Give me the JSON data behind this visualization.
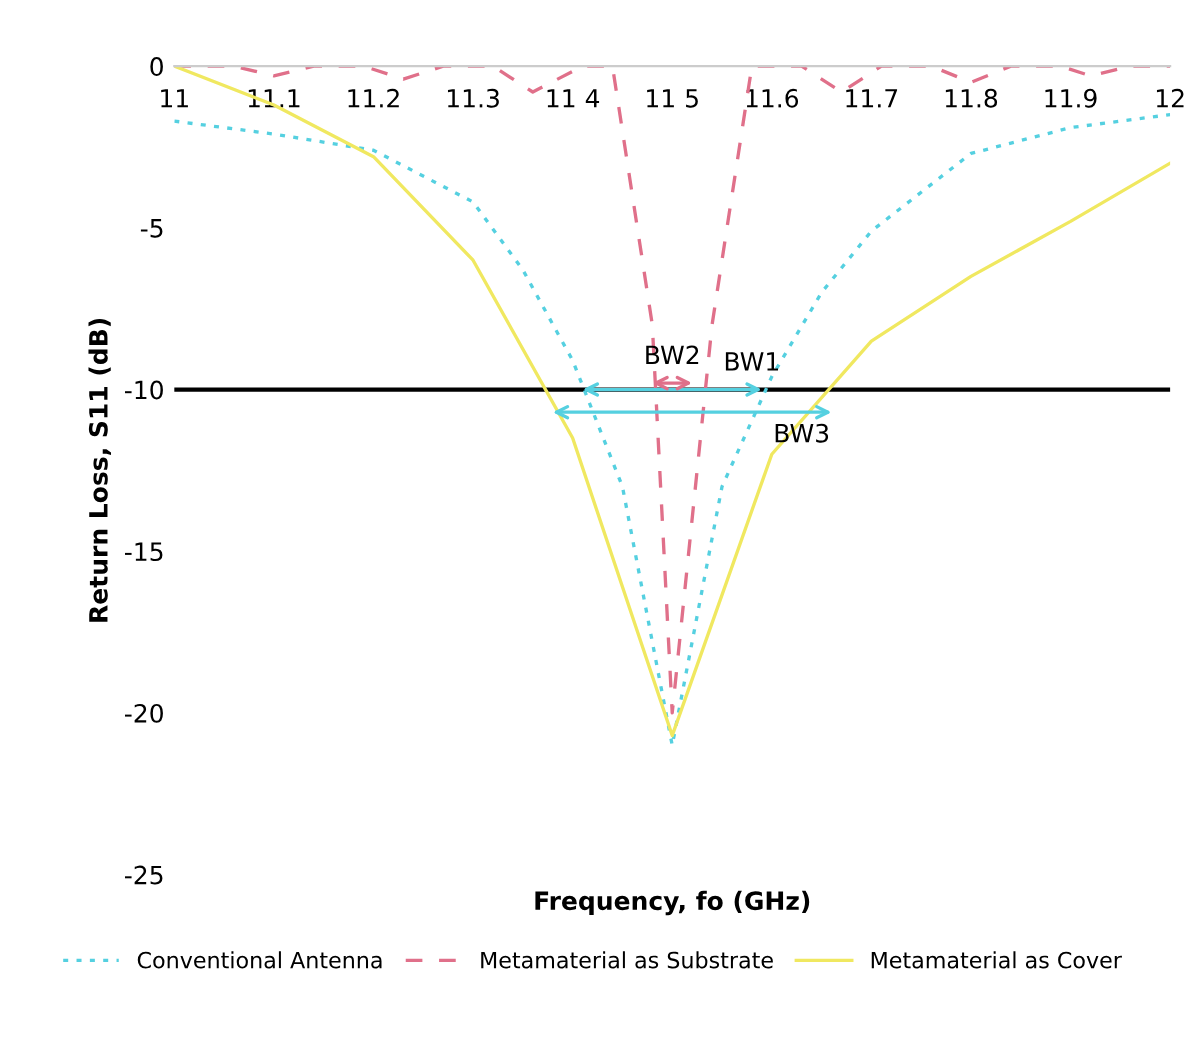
{
  "chart_data": {
    "type": "line",
    "xlabel": "Frequency, fo (GHz)",
    "ylabel": "Return Loss, S11 (dB)",
    "xlim": [
      11,
      12
    ],
    "xticks": [
      11,
      11.1,
      11.2,
      11.3,
      {
        "value": 11.4,
        "label": "11 4"
      },
      {
        "value": 11.5,
        "label": "11 5"
      },
      11.6,
      11.7,
      11.8,
      11.9,
      12
    ],
    "ylim": [
      -25,
      0
    ],
    "yticks": [
      -25,
      -20,
      -15,
      -10,
      -5,
      0
    ],
    "grid": false,
    "legend": "bottom",
    "marker": "none",
    "series": [
      {
        "name": "Conventional Antenna",
        "color": "#55d0e0",
        "line_style": "dotted",
        "x": [
          11,
          11.1,
          11.2,
          11.3,
          11.35,
          11.4,
          11.45,
          11.5,
          11.55,
          11.6,
          11.65,
          11.7,
          11.8,
          11.9,
          12
        ],
        "values": [
          -1.7,
          -2.1,
          -2.6,
          -4.2,
          -6.3,
          -9.1,
          -13,
          -21,
          -13,
          -9.6,
          -7,
          -5.1,
          -2.7,
          -1.9,
          -1.5
        ]
      },
      {
        "name": "Metamaterial as Substrate",
        "color": "#e0708a",
        "line_style": "dashed",
        "x": [
          11,
          11.06,
          11.1,
          11.14,
          11.19,
          11.23,
          11.27,
          11.32,
          11.36,
          11.41,
          11.44,
          11.48,
          11.5,
          11.54,
          11.58,
          11.63,
          11.67,
          11.71,
          11.76,
          11.8,
          11.84,
          11.89,
          11.92,
          11.96,
          12
        ],
        "values": [
          0,
          0,
          -0.3,
          0,
          0,
          -0.4,
          0,
          0,
          -0.8,
          0,
          0,
          -8,
          -20,
          -8,
          0,
          0,
          -0.8,
          0,
          0,
          -0.5,
          0,
          0,
          -0.3,
          0,
          0
        ]
      },
      {
        "name": "Metamaterial as Cover",
        "color": "#f0e860",
        "line_style": "solid",
        "x": [
          11,
          11.1,
          11.2,
          11.3,
          11.4,
          11.5,
          11.6,
          11.7,
          11.8,
          11.9,
          12
        ],
        "values": [
          0,
          -1.2,
          -2.8,
          -6,
          -11.5,
          -20.7,
          -12,
          -8.5,
          -6.5,
          -4.8,
          -3
        ]
      }
    ],
    "ref_lines": [
      {
        "axis": "y",
        "value": -10,
        "color": "#000000",
        "line_style": "solid"
      }
    ],
    "annotations": [
      {
        "text": "BW1",
        "x": 11.58,
        "y": -10
      },
      {
        "text": "BW2",
        "x": 11.5,
        "y": -9.8
      },
      {
        "text": "BW3",
        "x": 11.63,
        "y": -10.7
      }
    ]
  }
}
